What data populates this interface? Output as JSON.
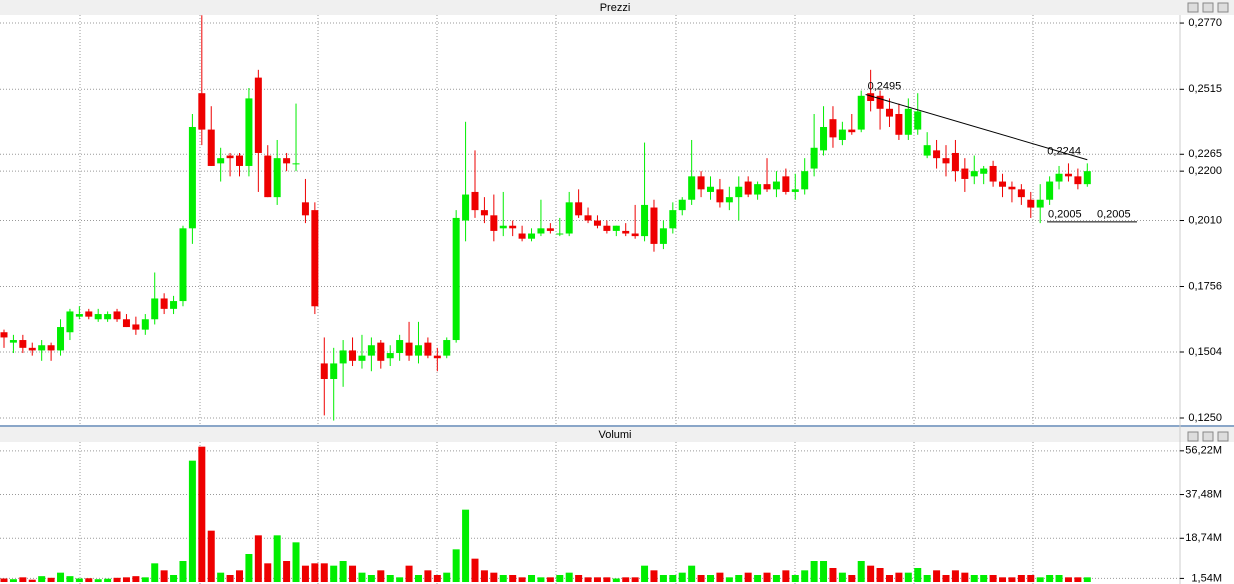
{
  "chart_data": [
    {
      "type": "candlestick",
      "title": "Prezzi",
      "up_color": "#00ee00",
      "down_color": "#ee0000",
      "open": [
        0.158,
        0.154,
        0.155,
        0.152,
        0.151,
        0.153,
        0.151,
        0.158,
        0.164,
        0.166,
        0.163,
        0.163,
        0.166,
        0.163,
        0.161,
        0.159,
        0.163,
        0.171,
        0.167,
        0.17,
        0.198,
        0.25,
        0.236,
        0.223,
        0.226,
        0.226,
        0.222,
        0.256,
        0.226,
        0.21,
        0.225,
        0.223,
        0.208,
        0.205,
        0.146,
        0.14,
        0.146,
        0.151,
        0.147,
        0.149,
        0.154,
        0.148,
        0.15,
        0.154,
        0.149,
        0.154,
        0.149,
        0.149,
        0.155,
        0.201,
        0.212,
        0.205,
        0.203,
        0.198,
        0.199,
        0.196,
        0.194,
        0.196,
        0.198,
        0.196,
        0.196,
        0.208,
        0.203,
        0.201,
        0.199,
        0.197,
        0.197,
        0.196,
        0.195,
        0.206,
        0.192,
        0.198,
        0.205,
        0.209,
        0.218,
        0.212,
        0.213,
        0.208,
        0.21,
        0.216,
        0.211,
        0.215,
        0.213,
        0.218,
        0.212,
        0.213,
        0.221,
        0.228,
        0.24,
        0.232,
        0.236,
        0.236,
        0.25,
        0.249,
        0.244,
        0.242,
        0.234,
        0.236,
        0.226,
        0.228,
        0.225,
        0.227,
        0.221,
        0.218,
        0.219,
        0.222,
        0.216,
        0.214,
        0.213,
        0.209,
        0.206,
        0.209,
        0.216,
        0.219,
        0.218,
        0.215
      ],
      "high": [
        0.159,
        0.157,
        0.157,
        0.154,
        0.155,
        0.154,
        0.163,
        0.167,
        0.168,
        0.167,
        0.167,
        0.166,
        0.167,
        0.165,
        0.164,
        0.165,
        0.181,
        0.173,
        0.172,
        0.199,
        0.242,
        0.28,
        0.245,
        0.229,
        0.227,
        0.227,
        0.252,
        0.259,
        0.23,
        0.232,
        0.227,
        0.246,
        0.217,
        0.208,
        0.156,
        0.152,
        0.155,
        0.156,
        0.157,
        0.156,
        0.155,
        0.153,
        0.157,
        0.162,
        0.162,
        0.156,
        0.152,
        0.156,
        0.205,
        0.239,
        0.228,
        0.21,
        0.211,
        0.212,
        0.201,
        0.199,
        0.198,
        0.209,
        0.2,
        0.202,
        0.212,
        0.213,
        0.206,
        0.203,
        0.201,
        0.199,
        0.2,
        0.207,
        0.231,
        0.209,
        0.201,
        0.208,
        0.21,
        0.232,
        0.22,
        0.218,
        0.217,
        0.214,
        0.218,
        0.218,
        0.216,
        0.225,
        0.22,
        0.221,
        0.219,
        0.225,
        0.242,
        0.245,
        0.245,
        0.239,
        0.242,
        0.251,
        0.259,
        0.251,
        0.248,
        0.246,
        0.248,
        0.25,
        0.235,
        0.232,
        0.23,
        0.232,
        0.225,
        0.226,
        0.222,
        0.224,
        0.219,
        0.216,
        0.215,
        0.212,
        0.215,
        0.218,
        0.222,
        0.223,
        0.221,
        0.223
      ],
      "low": [
        0.152,
        0.15,
        0.15,
        0.149,
        0.147,
        0.147,
        0.149,
        0.155,
        0.163,
        0.163,
        0.162,
        0.162,
        0.162,
        0.16,
        0.157,
        0.157,
        0.161,
        0.165,
        0.165,
        0.168,
        0.192,
        0.23,
        0.222,
        0.216,
        0.218,
        0.218,
        0.218,
        0.212,
        0.21,
        0.207,
        0.22,
        0.22,
        0.2,
        0.165,
        0.126,
        0.124,
        0.137,
        0.145,
        0.144,
        0.143,
        0.144,
        0.145,
        0.147,
        0.147,
        0.146,
        0.148,
        0.143,
        0.148,
        0.154,
        0.193,
        0.202,
        0.2,
        0.193,
        0.195,
        0.195,
        0.193,
        0.193,
        0.195,
        0.196,
        0.195,
        0.195,
        0.202,
        0.2,
        0.198,
        0.196,
        0.195,
        0.195,
        0.194,
        0.193,
        0.189,
        0.19,
        0.196,
        0.203,
        0.207,
        0.21,
        0.209,
        0.206,
        0.205,
        0.201,
        0.21,
        0.209,
        0.212,
        0.21,
        0.211,
        0.209,
        0.211,
        0.218,
        0.226,
        0.229,
        0.23,
        0.234,
        0.235,
        0.243,
        0.236,
        0.237,
        0.232,
        0.232,
        0.234,
        0.225,
        0.221,
        0.218,
        0.216,
        0.212,
        0.215,
        0.215,
        0.214,
        0.21,
        0.208,
        0.207,
        0.202,
        0.2,
        0.207,
        0.213,
        0.216,
        0.213,
        0.214
      ],
      "close": [
        0.156,
        0.155,
        0.152,
        0.151,
        0.153,
        0.151,
        0.16,
        0.166,
        0.165,
        0.164,
        0.165,
        0.165,
        0.163,
        0.16,
        0.159,
        0.163,
        0.171,
        0.167,
        0.17,
        0.198,
        0.237,
        0.236,
        0.222,
        0.225,
        0.225,
        0.222,
        0.248,
        0.227,
        0.21,
        0.225,
        0.223,
        0.223,
        0.203,
        0.168,
        0.14,
        0.146,
        0.151,
        0.147,
        0.149,
        0.153,
        0.147,
        0.15,
        0.155,
        0.149,
        0.153,
        0.149,
        0.148,
        0.155,
        0.202,
        0.211,
        0.205,
        0.203,
        0.197,
        0.199,
        0.198,
        0.194,
        0.196,
        0.198,
        0.197,
        0.196,
        0.208,
        0.203,
        0.201,
        0.199,
        0.197,
        0.199,
        0.196,
        0.195,
        0.207,
        0.192,
        0.198,
        0.205,
        0.209,
        0.218,
        0.213,
        0.214,
        0.208,
        0.21,
        0.214,
        0.211,
        0.215,
        0.213,
        0.216,
        0.212,
        0.213,
        0.22,
        0.229,
        0.237,
        0.233,
        0.236,
        0.235,
        0.249,
        0.247,
        0.244,
        0.241,
        0.234,
        0.244,
        0.243,
        0.23,
        0.225,
        0.223,
        0.22,
        0.217,
        0.22,
        0.221,
        0.216,
        0.214,
        0.213,
        0.21,
        0.206,
        0.209,
        0.216,
        0.219,
        0.218,
        0.215,
        0.22
      ],
      "ylim": [
        0.1223,
        0.2801
      ],
      "yticks": [
        {
          "value": 0.277,
          "label": "0,2770"
        },
        {
          "value": 0.2515,
          "label": "0,2515"
        },
        {
          "value": 0.2265,
          "label": "0,2265"
        },
        {
          "value": 0.22,
          "label": "0,2200"
        },
        {
          "value": 0.201,
          "label": "0,2010"
        },
        {
          "value": 0.1756,
          "label": "0,1756"
        },
        {
          "value": 0.1504,
          "label": "0,1504"
        },
        {
          "value": 0.125,
          "label": "0,1250"
        }
      ],
      "annotations": [
        {
          "value": 0.2495,
          "label": "0,2495"
        },
        {
          "value": 0.2244,
          "label": "0,2244"
        },
        {
          "value": 0.2005,
          "label": "0,2005"
        },
        {
          "value": 0.2005,
          "label": "0,2005"
        }
      ]
    },
    {
      "type": "bar",
      "title": "Volumi",
      "values": [
        1.5,
        1.2,
        2.0,
        1.0,
        2.5,
        1.8,
        4.0,
        2.5,
        1.5,
        1.6,
        1.2,
        1.4,
        1.8,
        2.0,
        2.5,
        2.0,
        8.0,
        5.0,
        3.0,
        9.0,
        52,
        58,
        22,
        4,
        3,
        5,
        12,
        20,
        8,
        20,
        9,
        17,
        7,
        8,
        8,
        7,
        9,
        7,
        4,
        3,
        5,
        3,
        2,
        7,
        3,
        5,
        3,
        4,
        14,
        31,
        10,
        5,
        4,
        3,
        3,
        2,
        3,
        2,
        2,
        3,
        4,
        3,
        2,
        2,
        2,
        1.5,
        2,
        2,
        7,
        5,
        3,
        3,
        4,
        7,
        3,
        3,
        4,
        2,
        3,
        4,
        3,
        4,
        3,
        5,
        3,
        5,
        9,
        9,
        6,
        4,
        3,
        9,
        7,
        6,
        3,
        4,
        4,
        6,
        3,
        5,
        3,
        5,
        4,
        3,
        3,
        3,
        2,
        2,
        3,
        3,
        2,
        3,
        3,
        2,
        2,
        2
      ],
      "ylim": [
        0,
        60
      ],
      "yticks": [
        {
          "value": 56.22,
          "label": "56,22M"
        },
        {
          "value": 37.48,
          "label": "37,48M"
        },
        {
          "value": 18.74,
          "label": "18,74M"
        },
        {
          "value": 1.54,
          "label": "1,54M"
        }
      ]
    }
  ]
}
